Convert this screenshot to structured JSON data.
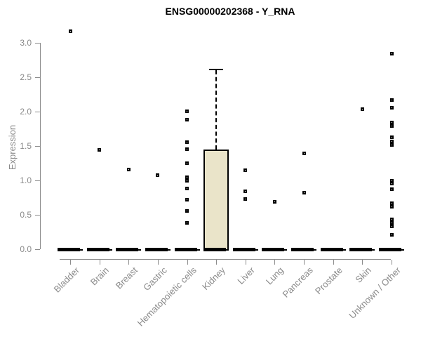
{
  "title": "ENSG00000202368 - Y_RNA",
  "chart_data": {
    "type": "box",
    "title": "ENSG00000202368 - Y_RNA",
    "xlabel": "",
    "ylabel": "Expression",
    "ylim": [
      0,
      3.2
    ],
    "yticks": [
      0,
      0.5,
      1,
      1.5,
      2,
      2.5,
      3
    ],
    "ytick_labels": [
      "0.0",
      "0.5",
      "1.0",
      "1.5",
      "2.0",
      "2.5",
      "3.0"
    ],
    "grid": false,
    "legend": "none",
    "categories": [
      "Bladder",
      "Brain",
      "Breast",
      "Gastric",
      "Hematopoietic cells",
      "Kidney",
      "Liver",
      "Lung",
      "Pancreas",
      "Prostate",
      "Skin",
      "Unknown / Other"
    ],
    "series": [
      {
        "name": "Bladder",
        "q1": 0,
        "median": 0,
        "q3": 0,
        "whisker_low": 0,
        "whisker_high": 0,
        "points": [
          3.17
        ]
      },
      {
        "name": "Brain",
        "q1": 0,
        "median": 0,
        "q3": 0,
        "whisker_low": 0,
        "whisker_high": 0,
        "points": [
          1.44
        ]
      },
      {
        "name": "Breast",
        "q1": 0,
        "median": 0,
        "q3": 0,
        "whisker_low": 0,
        "whisker_high": 0,
        "points": [
          1.16
        ]
      },
      {
        "name": "Gastric",
        "q1": 0,
        "median": 0,
        "q3": 0,
        "whisker_low": 0,
        "whisker_high": 0,
        "points": [
          1.08
        ]
      },
      {
        "name": "Hematopoietic cells",
        "q1": 0,
        "median": 0,
        "q3": 0,
        "whisker_low": 0,
        "whisker_high": 0,
        "points": [
          2.01,
          1.88,
          1.56,
          1.45,
          1.25,
          1.05,
          1.0,
          0.88,
          0.72,
          0.56,
          0.38
        ]
      },
      {
        "name": "Kidney",
        "q1": 0,
        "median": 0,
        "q3": 1.45,
        "whisker_low": 0,
        "whisker_high": 2.62,
        "points": []
      },
      {
        "name": "Liver",
        "q1": 0,
        "median": 0,
        "q3": 0,
        "whisker_low": 0,
        "whisker_high": 0,
        "points": [
          1.15,
          0.84,
          0.73
        ]
      },
      {
        "name": "Lung",
        "q1": 0,
        "median": 0,
        "q3": 0,
        "whisker_low": 0,
        "whisker_high": 0,
        "points": [
          0.69
        ]
      },
      {
        "name": "Pancreas",
        "q1": 0,
        "median": 0,
        "q3": 0,
        "whisker_low": 0,
        "whisker_high": 0,
        "points": [
          1.39,
          0.82
        ]
      },
      {
        "name": "Prostate",
        "q1": 0,
        "median": 0,
        "q3": 0,
        "whisker_low": 0,
        "whisker_high": 0,
        "points": []
      },
      {
        "name": "Skin",
        "q1": 0,
        "median": 0,
        "q3": 0,
        "whisker_low": 0,
        "whisker_high": 0,
        "points": [
          2.04
        ]
      },
      {
        "name": "Unknown / Other",
        "q1": 0,
        "median": 0,
        "q3": 0,
        "whisker_low": 0,
        "whisker_high": 0,
        "points": [
          2.84,
          2.17,
          2.06,
          1.84,
          1.79,
          1.63,
          1.57,
          1.52,
          1.0,
          0.95,
          0.87,
          0.67,
          0.62,
          0.43,
          0.38,
          0.33,
          0.21
        ]
      }
    ]
  },
  "colors": {
    "box_fill": "#EAE4C9",
    "box_border": "#000000",
    "point": "#000000",
    "axis": "#8c8c8c",
    "axis_text": "#8a8a8a",
    "title_text": "#000000",
    "background": "#ffffff"
  }
}
